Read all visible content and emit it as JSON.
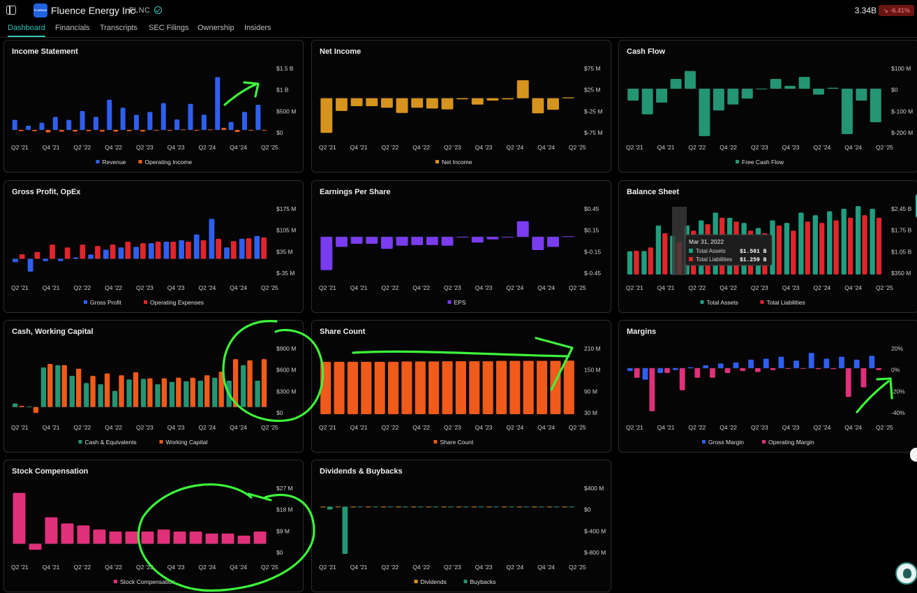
{
  "header": {
    "logo_text": "FLUENCE",
    "company_name": "Fluence Energy Inc",
    "ticker": "FLNC",
    "market_cap": "3.34B",
    "change": "-6.41%",
    "change_icon": "trend-down-icon"
  },
  "tabs": [
    {
      "label": "Dashboard",
      "active": true
    },
    {
      "label": "Financials",
      "active": false
    },
    {
      "label": "Transcripts",
      "active": false
    },
    {
      "label": "SEC Filings",
      "active": false
    },
    {
      "label": "Ownership",
      "active": false
    },
    {
      "label": "Insiders",
      "active": false
    }
  ],
  "x_ticks": [
    "Q2 '21",
    "Q4 '21",
    "Q2 '22",
    "Q4 '22",
    "Q2 '23",
    "Q4 '23",
    "Q2 '24",
    "Q4 '24",
    "Q2 '25"
  ],
  "colors": {
    "blue": "#2f5ff0",
    "orange": "#f05a1a",
    "gold": "#d6941e",
    "green": "#249572",
    "purple": "#7a3cf0",
    "red": "#e0252b",
    "teal": "#1f9e80",
    "pink": "#e0307a",
    "annotation": "#3df53a"
  },
  "chart_data": [
    {
      "id": "income-statement",
      "type": "bar",
      "title": "Income Statement",
      "y_ticks": [
        "$1.5 B",
        "$1 B",
        "$500 M",
        "$0"
      ],
      "ylim": [
        -0.1,
        1.5
      ],
      "series": [
        {
          "name": "Revenue",
          "color": "blue",
          "values": [
            0.24,
            0.1,
            0.17,
            0.31,
            0.24,
            0.45,
            0.31,
            0.72,
            0.53,
            0.36,
            0.43,
            0.64,
            0.25,
            0.62,
            0.36,
            1.26,
            0.19,
            0.43,
            0.6
          ]
        },
        {
          "name": "Operating Income",
          "color": "orange",
          "values": [
            -0.03,
            -0.03,
            -0.06,
            -0.04,
            -0.04,
            -0.03,
            -0.04,
            -0.04,
            -0.03,
            -0.04,
            -0.01,
            0.0,
            0.01,
            -0.02,
            0.01,
            0.05,
            -0.05,
            0.0,
            -0.01
          ]
        }
      ]
    },
    {
      "id": "net-income",
      "type": "bar",
      "title": "Net Income",
      "y_ticks": [
        "$75 M",
        "$25 M",
        "$-25 M",
        "$-75 M"
      ],
      "ylim": [
        -90,
        78
      ],
      "series": [
        {
          "name": "Net Income",
          "color": "gold",
          "values": [
            -87,
            -32,
            -20,
            -20,
            -24,
            -37,
            -24,
            -26,
            -28,
            -3,
            -16,
            -6,
            -3,
            45,
            -38,
            -29,
            2
          ]
        }
      ]
    },
    {
      "id": "cash-flow",
      "type": "bar",
      "title": "Cash Flow",
      "y_ticks": [
        "$100 M",
        "$0",
        "$-100 M",
        "$-200 M"
      ],
      "ylim": [
        -230,
        110
      ],
      "series": [
        {
          "name": "Free Cash Flow",
          "color": "green",
          "values": [
            -60,
            -130,
            -70,
            50,
            90,
            -240,
            -110,
            -80,
            -50,
            0,
            50,
            15,
            60,
            -30,
            5,
            -230,
            -60,
            -170
          ]
        }
      ]
    },
    {
      "id": "gross-profit-opex",
      "type": "bar",
      "title": "Gross Profit, OpEx",
      "y_ticks": [
        "$175 M",
        "$105 M",
        "$35 M",
        "$-35 M"
      ],
      "ylim": [
        -55,
        180
      ],
      "series": [
        {
          "name": "Gross Profit",
          "color": "blue",
          "values": [
            -12,
            -45,
            -8,
            -8,
            5,
            15,
            32,
            40,
            42,
            55,
            60,
            65,
            85,
            140,
            40,
            70,
            80
          ]
        },
        {
          "name": "Operating Expenses",
          "color": "red",
          "values": [
            16,
            24,
            50,
            40,
            50,
            45,
            50,
            60,
            55,
            60,
            60,
            60,
            65,
            70,
            62,
            72,
            75
          ]
        }
      ]
    },
    {
      "id": "eps",
      "type": "bar",
      "title": "Earnings Per Share",
      "y_ticks": [
        "$0.45",
        "$0.15",
        "$-0.15",
        "$-0.45"
      ],
      "ylim": [
        -0.6,
        0.47
      ],
      "series": [
        {
          "name": "EPS",
          "color": "purple",
          "values": [
            -0.53,
            -0.16,
            -0.11,
            -0.11,
            -0.19,
            -0.14,
            -0.13,
            -0.13,
            -0.14,
            -0.01,
            -0.09,
            -0.04,
            -0.01,
            0.25,
            -0.21,
            -0.16,
            0.01
          ]
        }
      ]
    },
    {
      "id": "balance-sheet",
      "type": "bar",
      "title": "Balance Sheet",
      "y_ticks": [
        "$2.45 B",
        "$1.75 B",
        "$1.05 B",
        "$350 M"
      ],
      "ylim": [
        0,
        2.6
      ],
      "series": [
        {
          "name": "Total Assets",
          "color": "teal",
          "values": [
            0.9,
            0.91,
            1.9,
            1.501,
            1.9,
            2.1,
            2.4,
            2.2,
            2.0,
            1.8,
            2.1,
            2.0,
            2.4,
            2.3,
            2.45,
            2.55,
            2.65,
            2.55
          ]
        },
        {
          "name": "Total Liabilities",
          "color": "red",
          "values": [
            0.92,
            1.05,
            1.6,
            1.259,
            1.7,
            1.95,
            2.2,
            2.05,
            1.7,
            1.6,
            1.9,
            1.7,
            2.05,
            2.0,
            2.1,
            2.2,
            2.3,
            2.2
          ]
        }
      ],
      "tooltip": {
        "date": "Mar 31, 2022",
        "assets_label": "Total Assets",
        "assets_value": "$1.501 B",
        "liabilities_label": "Total Liabilities",
        "liabilities_value": "$1.259 B"
      }
    },
    {
      "id": "cash-working-capital",
      "type": "bar",
      "title": "Cash, Working Capital",
      "y_ticks": [
        "$900 M",
        "$600 M",
        "$300 M",
        "$0"
      ],
      "ylim": [
        -120,
        1000
      ],
      "series": [
        {
          "name": "Cash & Equivalents",
          "color": "green",
          "values": [
            60,
            10,
            660,
            700,
            520,
            400,
            380,
            270,
            460,
            470,
            380,
            420,
            430,
            440,
            490,
            440,
            700,
            440
          ]
        },
        {
          "name": "Working Capital",
          "color": "orange",
          "values": [
            20,
            -100,
            720,
            700,
            640,
            520,
            560,
            530,
            580,
            480,
            480,
            490,
            490,
            530,
            590,
            800,
            780,
            800
          ]
        }
      ]
    },
    {
      "id": "share-count",
      "type": "bar",
      "title": "Share Count",
      "y_ticks": [
        "210 M",
        "150 M",
        "90 M",
        "30 M"
      ],
      "ylim": [
        0,
        220
      ],
      "series": [
        {
          "name": "Share Count",
          "color": "orange",
          "values": [
            172,
            172,
            172,
            172,
            172,
            172,
            173,
            173,
            173,
            174,
            174,
            174,
            174,
            175,
            175,
            175,
            175,
            175,
            176
          ]
        }
      ]
    },
    {
      "id": "margins",
      "type": "bar",
      "title": "Margins",
      "y_ticks": [
        "20%",
        "0%",
        "-20%",
        "-40%"
      ],
      "ylim": [
        -48,
        22
      ],
      "series": [
        {
          "name": "Gross Margin",
          "color": "blue",
          "values": [
            -3,
            -12,
            -5,
            -2,
            1,
            3,
            5,
            6,
            9,
            10,
            12,
            8,
            16,
            10,
            12,
            9,
            13
          ]
        },
        {
          "name": "Operating Margin",
          "color": "pink",
          "values": [
            -10,
            -45,
            -5,
            -23,
            -10,
            -10,
            -5,
            -3,
            -4,
            -2,
            0,
            0,
            -1,
            -1,
            -30,
            -20,
            -2
          ]
        }
      ]
    },
    {
      "id": "stock-compensation",
      "type": "bar",
      "title": "Stock Compensation",
      "y_ticks": [
        "$27 M",
        "$18 M",
        "$9 M",
        "$0"
      ],
      "ylim": [
        -5,
        28
      ],
      "series": [
        {
          "name": "Stock Compensation",
          "color": "pink",
          "values": [
            25,
            -3,
            13,
            10,
            9,
            7,
            6,
            6,
            6,
            7,
            6,
            6,
            5,
            5,
            4,
            6
          ]
        }
      ]
    },
    {
      "id": "dividends-buybacks",
      "type": "bar",
      "title": "Dividends & Buybacks",
      "y_ticks": [
        "$400 M",
        "$0",
        "$-400 M",
        "$-800 M"
      ],
      "ylim": [
        -1000,
        420
      ],
      "series": [
        {
          "name": "Dividends",
          "color": "gold",
          "values": [
            0,
            0,
            0,
            0,
            0,
            0,
            0,
            0,
            0,
            0,
            0,
            0,
            0,
            0,
            0,
            0,
            0
          ]
        },
        {
          "name": "Buybacks",
          "color": "green",
          "values": [
            -60,
            -1000,
            0,
            0,
            -5,
            0,
            0,
            -3,
            0,
            0,
            -2,
            0,
            0,
            -2,
            0,
            0,
            0
          ]
        }
      ]
    }
  ]
}
